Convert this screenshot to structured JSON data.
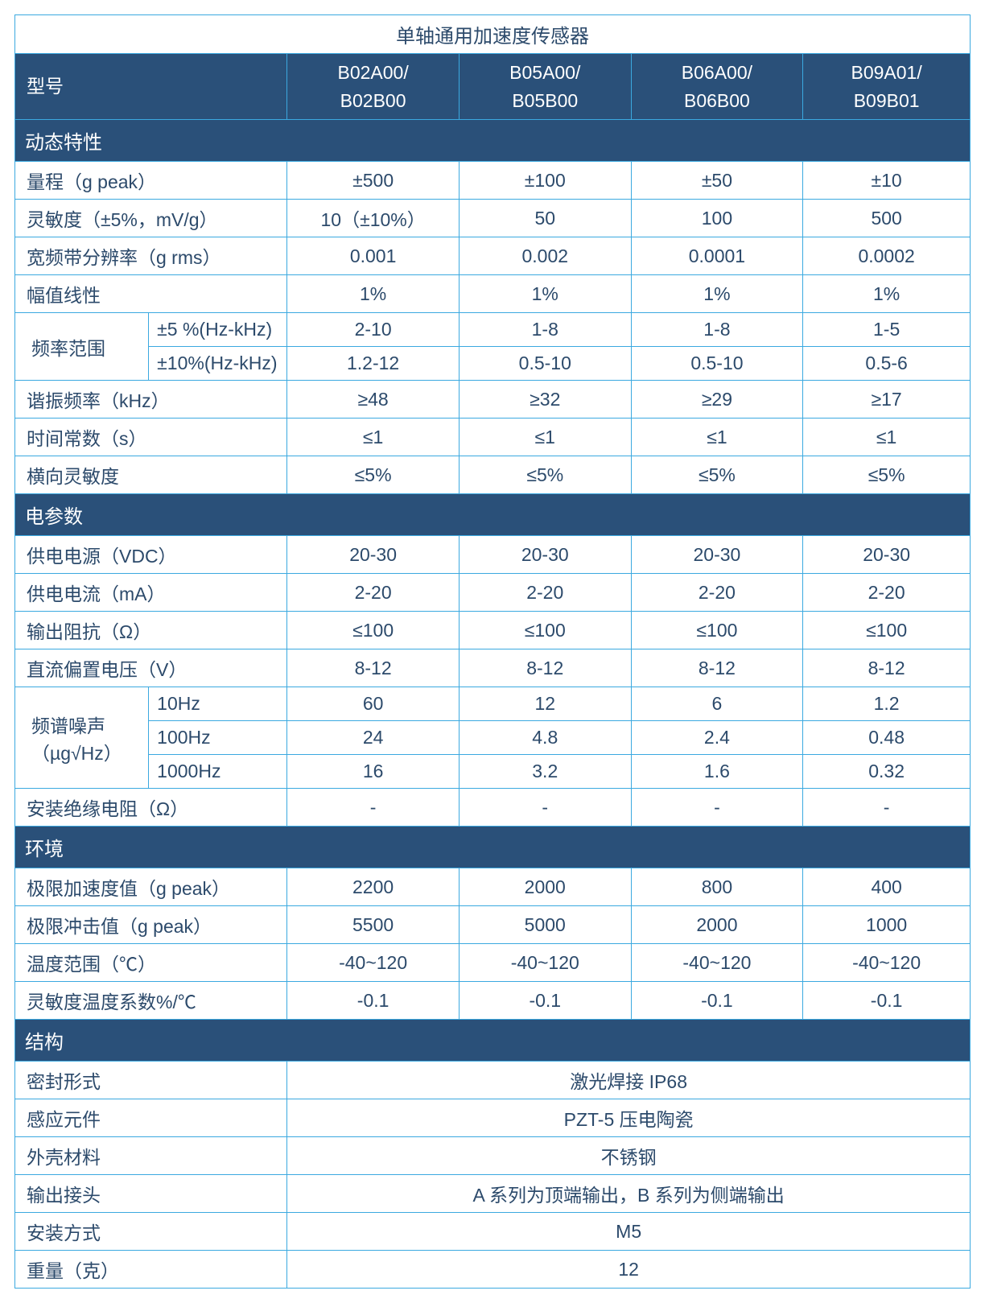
{
  "title": "单轴通用加速度传感器",
  "model_label": "型号",
  "models": [
    "B02A00/\nB02B00",
    "B05A00/\nB05B00",
    "B06A00/\nB06B00",
    "B09A01/\nB09B01"
  ],
  "sections": {
    "dynamic": {
      "header": "动态特性",
      "rows": [
        {
          "label": "量程（g peak）",
          "vals": [
            "±500",
            "±100",
            "±50",
            "±10"
          ]
        },
        {
          "label": "灵敏度（±5%，mV/g）",
          "vals": [
            "10（±10%）",
            "50",
            "100",
            "500"
          ]
        },
        {
          "label": "宽频带分辨率（g rms）",
          "vals": [
            "0.001",
            "0.002",
            "0.0001",
            "0.0002"
          ]
        },
        {
          "label": "幅值线性",
          "vals": [
            "1%",
            "1%",
            "1%",
            "1%"
          ]
        }
      ],
      "freq_range": {
        "group_label": "频率范围",
        "sub": [
          {
            "label": "±5 %(Hz-kHz)",
            "vals": [
              "2-10",
              "1-8",
              "1-8",
              "1-5"
            ]
          },
          {
            "label": "±10%(Hz-kHz)",
            "vals": [
              "1.2-12",
              "0.5-10",
              "0.5-10",
              "0.5-6"
            ]
          }
        ]
      },
      "rows2": [
        {
          "label": "谐振频率（kHz）",
          "vals": [
            "≥48",
            "≥32",
            "≥29",
            "≥17"
          ]
        },
        {
          "label": "时间常数（s）",
          "vals": [
            "≤1",
            "≤1",
            "≤1",
            "≤1"
          ]
        },
        {
          "label": "横向灵敏度",
          "vals": [
            "≤5%",
            "≤5%",
            "≤5%",
            "≤5%"
          ]
        }
      ]
    },
    "electrical": {
      "header": "电参数",
      "rows": [
        {
          "label": "供电电源（VDC）",
          "vals": [
            "20-30",
            "20-30",
            "20-30",
            "20-30"
          ]
        },
        {
          "label": "供电电流（mA）",
          "vals": [
            "2-20",
            "2-20",
            "2-20",
            "2-20"
          ]
        },
        {
          "label": "输出阻抗（Ω）",
          "vals": [
            "≤100",
            "≤100",
            "≤100",
            "≤100"
          ]
        },
        {
          "label": "直流偏置电压（V）",
          "vals": [
            "8-12",
            "8-12",
            "8-12",
            "8-12"
          ]
        }
      ],
      "noise": {
        "group_label": "频谱噪声\n（µg√Hz）",
        "sub": [
          {
            "label": "10Hz",
            "vals": [
              "60",
              "12",
              "6",
              "1.2"
            ]
          },
          {
            "label": "100Hz",
            "vals": [
              "24",
              "4.8",
              "2.4",
              "0.48"
            ]
          },
          {
            "label": "1000Hz",
            "vals": [
              "16",
              "3.2",
              "1.6",
              "0.32"
            ]
          }
        ]
      },
      "rows2": [
        {
          "label": "安装绝缘电阻（Ω）",
          "vals": [
            "-",
            "-",
            "-",
            "-"
          ]
        }
      ]
    },
    "environment": {
      "header": "环境",
      "rows": [
        {
          "label": "极限加速度值（g peak）",
          "vals": [
            "2200",
            "2000",
            "800",
            "400"
          ]
        },
        {
          "label": "极限冲击值（g peak）",
          "vals": [
            "5500",
            "5000",
            "2000",
            "1000"
          ]
        },
        {
          "label": "温度范围（℃）",
          "vals": [
            "-40~120",
            "-40~120",
            "-40~120",
            "-40~120"
          ]
        },
        {
          "label": "灵敏度温度系数%/℃",
          "vals": [
            "-0.1",
            "-0.1",
            "-0.1",
            "-0.1"
          ]
        }
      ]
    },
    "structure": {
      "header": "结构",
      "rows": [
        {
          "label": "密封形式",
          "merged": "激光焊接 IP68"
        },
        {
          "label": "感应元件",
          "merged": "PZT-5 压电陶瓷"
        },
        {
          "label": "外壳材料",
          "merged": "不锈钢"
        },
        {
          "label": "输出接头",
          "merged": "A 系列为顶端输出，B 系列为侧端输出"
        },
        {
          "label": "安装方式",
          "merged": "M5"
        },
        {
          "label": "重量（克）",
          "merged": "12"
        }
      ]
    }
  },
  "style": {
    "header_bg": "#2a5079",
    "header_fg": "#ffffff",
    "border_color": "#3ba9e0",
    "text_color": "#2c4a6b",
    "font_size_pt": 17
  }
}
